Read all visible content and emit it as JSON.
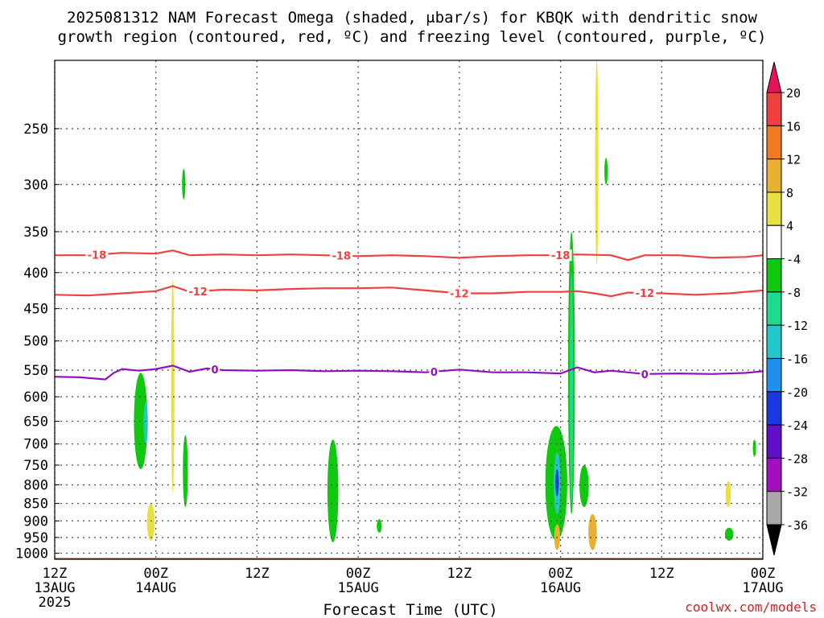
{
  "chart_data": {
    "type": "contour",
    "title_line1": "2025081312 NAM Forecast Omega (shaded, μbar/s) for KBQK with dendritic snow",
    "title_line2": "growth region (contoured, red, ºC) and freezing level (contoured, purple, ºC)",
    "xlabel": "Forecast Time (UTC)",
    "ylabel": "",
    "credit": "coolwx.com/models",
    "x_ticks": [
      {
        "label": "12Z",
        "sub1": "13AUG",
        "sub2": "2025",
        "hour": 0
      },
      {
        "label": "00Z",
        "sub1": "14AUG",
        "sub2": "",
        "hour": 12
      },
      {
        "label": "12Z",
        "sub1": "",
        "sub2": "",
        "hour": 24
      },
      {
        "label": "00Z",
        "sub1": "15AUG",
        "sub2": "",
        "hour": 36
      },
      {
        "label": "12Z",
        "sub1": "",
        "sub2": "",
        "hour": 48
      },
      {
        "label": "00Z",
        "sub1": "16AUG",
        "sub2": "",
        "hour": 60
      },
      {
        "label": "12Z",
        "sub1": "",
        "sub2": "",
        "hour": 72
      },
      {
        "label": "00Z",
        "sub1": "17AUG",
        "sub2": "",
        "hour": 84
      }
    ],
    "xlim_hours": [
      0,
      84
    ],
    "y_ticks": [
      250,
      300,
      350,
      400,
      450,
      500,
      550,
      600,
      650,
      700,
      750,
      800,
      850,
      900,
      950,
      1000
    ],
    "ylim_hpa": [
      200,
      1020
    ],
    "y_scale": "log-pressure",
    "grid": true,
    "colorbar": {
      "labels": [
        "20",
        "16",
        "12",
        "8",
        "4",
        "-4",
        "-8",
        "-12",
        "-16",
        "-20",
        "-24",
        "-28",
        "-32",
        "-36"
      ],
      "colors": [
        "#e8125a",
        "#f04040",
        "#f07a20",
        "#e8b030",
        "#e8e040",
        "#ffffff",
        "#10c810",
        "#20d890",
        "#20c8c8",
        "#2090f0",
        "#1838e0",
        "#6010c8",
        "#a010c0",
        "#a8a8a8",
        "#000000"
      ]
    },
    "contours": [
      {
        "name": "-18",
        "color": "#f04040",
        "label": "-18",
        "points": [
          [
            0,
            378
          ],
          [
            4,
            378
          ],
          [
            8,
            375
          ],
          [
            12,
            376
          ],
          [
            14,
            372
          ],
          [
            16,
            378
          ],
          [
            20,
            377
          ],
          [
            24,
            378
          ],
          [
            28,
            377
          ],
          [
            32,
            378
          ],
          [
            36,
            379
          ],
          [
            40,
            378
          ],
          [
            44,
            379
          ],
          [
            48,
            381
          ],
          [
            52,
            379
          ],
          [
            56,
            378
          ],
          [
            60,
            378
          ],
          [
            62,
            377
          ],
          [
            66,
            378
          ],
          [
            68,
            384
          ],
          [
            70,
            378
          ],
          [
            74,
            378
          ],
          [
            78,
            381
          ],
          [
            82,
            380
          ],
          [
            84,
            378
          ]
        ],
        "label_hours": [
          5,
          34,
          60
        ]
      },
      {
        "name": "-12",
        "color": "#f04040",
        "label": "-12",
        "points": [
          [
            0,
            430
          ],
          [
            4,
            431
          ],
          [
            8,
            428
          ],
          [
            12,
            425
          ],
          [
            14,
            418
          ],
          [
            16,
            426
          ],
          [
            20,
            423
          ],
          [
            24,
            424
          ],
          [
            28,
            422
          ],
          [
            32,
            421
          ],
          [
            36,
            421
          ],
          [
            40,
            420
          ],
          [
            44,
            424
          ],
          [
            48,
            428
          ],
          [
            52,
            428
          ],
          [
            56,
            426
          ],
          [
            60,
            426
          ],
          [
            62,
            425
          ],
          [
            64,
            428
          ],
          [
            66,
            432
          ],
          [
            68,
            427
          ],
          [
            72,
            428
          ],
          [
            76,
            430
          ],
          [
            80,
            428
          ],
          [
            84,
            424
          ]
        ],
        "label_hours": [
          17,
          48,
          70
        ]
      },
      {
        "name": "0",
        "color": "#9010c0",
        "label": "0",
        "points": [
          [
            0,
            562
          ],
          [
            3,
            563
          ],
          [
            6,
            567
          ],
          [
            7,
            555
          ],
          [
            8,
            548
          ],
          [
            10,
            551
          ],
          [
            12,
            548
          ],
          [
            14,
            542
          ],
          [
            16,
            553
          ],
          [
            18,
            547
          ],
          [
            20,
            550
          ],
          [
            24,
            551
          ],
          [
            28,
            550
          ],
          [
            32,
            552
          ],
          [
            36,
            551
          ],
          [
            40,
            552
          ],
          [
            44,
            554
          ],
          [
            48,
            549
          ],
          [
            52,
            554
          ],
          [
            56,
            554
          ],
          [
            60,
            556
          ],
          [
            62,
            545
          ],
          [
            64,
            554
          ],
          [
            66,
            551
          ],
          [
            70,
            557
          ],
          [
            74,
            556
          ],
          [
            78,
            557
          ],
          [
            82,
            555
          ],
          [
            84,
            552
          ]
        ],
        "label_hours": [
          19,
          45,
          70
        ]
      }
    ],
    "shaded_regions": [
      {
        "value": "-8",
        "color": "#10c810",
        "cx": 10.2,
        "p_top": 555,
        "p_bot": 760,
        "w": 1.6
      },
      {
        "value": "-16",
        "color": "#20c8c8",
        "cx": 10.8,
        "p_top": 610,
        "p_bot": 700,
        "w": 0.5
      },
      {
        "value": "4",
        "color": "#e8e040",
        "cx": 14.0,
        "p_top": 410,
        "p_bot": 820,
        "w": 0.25
      },
      {
        "value": "-8",
        "color": "#10c810",
        "cx": 15.5,
        "p_top": 680,
        "p_bot": 860,
        "w": 0.6
      },
      {
        "value": "4",
        "color": "#e8e040",
        "cx": 11.4,
        "p_top": 850,
        "p_bot": 960,
        "w": 0.9
      },
      {
        "value": "-8",
        "color": "#10c810",
        "cx": 15.3,
        "p_top": 285,
        "p_bot": 315,
        "w": 0.4
      },
      {
        "value": "-8",
        "color": "#10c810",
        "cx": 33.0,
        "p_top": 690,
        "p_bot": 965,
        "w": 1.3
      },
      {
        "value": "-8",
        "color": "#10c810",
        "cx": 38.5,
        "p_top": 895,
        "p_bot": 935,
        "w": 0.6
      },
      {
        "value": "-8",
        "color": "#10c810",
        "cx": 59.5,
        "p_top": 660,
        "p_bot": 960,
        "w": 2.6
      },
      {
        "value": "-16",
        "color": "#20c8c8",
        "cx": 59.6,
        "p_top": 720,
        "p_bot": 880,
        "w": 0.8
      },
      {
        "value": "-24",
        "color": "#1838e0",
        "cx": 59.6,
        "p_top": 760,
        "p_bot": 830,
        "w": 0.4
      },
      {
        "value": "-8",
        "color": "#10c810",
        "cx": 61.3,
        "p_top": 350,
        "p_bot": 880,
        "w": 0.8
      },
      {
        "value": "-12",
        "color": "#20d890",
        "cx": 61.3,
        "p_top": 400,
        "p_bot": 850,
        "w": 0.4
      },
      {
        "value": "4",
        "color": "#e8e040",
        "cx": 64.3,
        "p_top": 200,
        "p_bot": 390,
        "w": 0.35
      },
      {
        "value": "-8",
        "color": "#10c810",
        "cx": 65.4,
        "p_top": 275,
        "p_bot": 300,
        "w": 0.4
      },
      {
        "value": "-8",
        "color": "#10c810",
        "cx": 62.8,
        "p_top": 750,
        "p_bot": 860,
        "w": 1.1
      },
      {
        "value": "8",
        "color": "#e8b030",
        "cx": 59.6,
        "p_top": 910,
        "p_bot": 990,
        "w": 0.7
      },
      {
        "value": "8",
        "color": "#e8b030",
        "cx": 63.8,
        "p_top": 880,
        "p_bot": 990,
        "w": 1.0
      },
      {
        "value": "4",
        "color": "#e8e040",
        "cx": 79.9,
        "p_top": 790,
        "p_bot": 860,
        "w": 0.6
      },
      {
        "value": "-8",
        "color": "#10c810",
        "cx": 80.0,
        "p_top": 920,
        "p_bot": 960,
        "w": 1.0
      },
      {
        "value": "-8",
        "color": "#10c810",
        "cx": 83.0,
        "p_top": 690,
        "p_bot": 730,
        "w": 0.25
      }
    ],
    "surface_fill": {
      "color": "#a0522d"
    }
  }
}
